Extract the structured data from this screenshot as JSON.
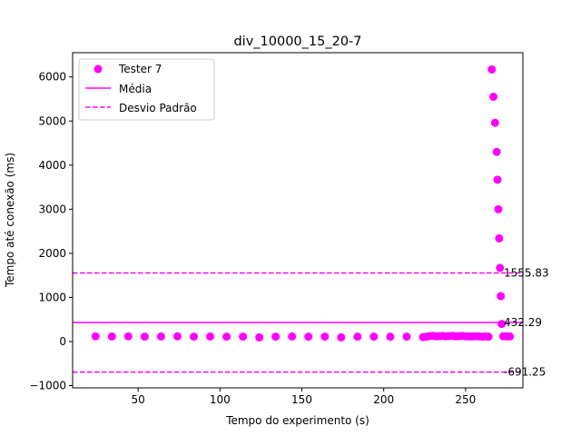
{
  "chart_data": {
    "type": "scatter",
    "title": "div_10000_15_20-7",
    "xlabel": "Tempo do experimento (s)",
    "ylabel": "Tempo até conexão (ms)",
    "xlim": [
      10,
      285
    ],
    "ylim": [
      -1050,
      6550
    ],
    "xticks": [
      50,
      100,
      150,
      200,
      250
    ],
    "yticks": [
      -1000,
      0,
      1000,
      2000,
      3000,
      4000,
      5000,
      6000
    ],
    "grid": false,
    "legend_position": "top-left",
    "color": "#ff00ff",
    "legend": [
      {
        "label": "Tester 7",
        "kind": "marker"
      },
      {
        "label": "Média",
        "kind": "solid-line"
      },
      {
        "label": "Desvio Padrão",
        "kind": "dashed-line"
      }
    ],
    "hlines": [
      {
        "y": 1555.83,
        "style": "dashed",
        "label": "1555.83"
      },
      {
        "y": 432.29,
        "style": "solid",
        "label": "432.29"
      },
      {
        "y": -691.25,
        "style": "dashed",
        "label": "-691.25"
      }
    ],
    "series": [
      {
        "name": "Tester 7",
        "points": [
          [
            24,
            120
          ],
          [
            34,
            115
          ],
          [
            44,
            118
          ],
          [
            54,
            112
          ],
          [
            64,
            115
          ],
          [
            74,
            118
          ],
          [
            84,
            112
          ],
          [
            94,
            115
          ],
          [
            104,
            110
          ],
          [
            114,
            112
          ],
          [
            124,
            95
          ],
          [
            134,
            112
          ],
          [
            144,
            115
          ],
          [
            154,
            110
          ],
          [
            164,
            112
          ],
          [
            174,
            95
          ],
          [
            184,
            110
          ],
          [
            194,
            112
          ],
          [
            204,
            110
          ],
          [
            214,
            112
          ],
          [
            224,
            100
          ],
          [
            226,
            110
          ],
          [
            228,
            125
          ],
          [
            230,
            130
          ],
          [
            232,
            118
          ],
          [
            234,
            122
          ],
          [
            236,
            128
          ],
          [
            238,
            120
          ],
          [
            240,
            125
          ],
          [
            242,
            130
          ],
          [
            244,
            118
          ],
          [
            246,
            122
          ],
          [
            248,
            128
          ],
          [
            250,
            120
          ],
          [
            252,
            118
          ],
          [
            254,
            115
          ],
          [
            256,
            120
          ],
          [
            258,
            118
          ],
          [
            260,
            112
          ],
          [
            262,
            115
          ],
          [
            264,
            110
          ],
          [
            266,
            6170
          ],
          [
            267,
            5550
          ],
          [
            268,
            4960
          ],
          [
            269,
            4300
          ],
          [
            269.5,
            3670
          ],
          [
            270,
            3000
          ],
          [
            270.5,
            2340
          ],
          [
            271,
            1670
          ],
          [
            271.5,
            1030
          ],
          [
            272,
            400
          ],
          [
            273,
            120
          ],
          [
            275,
            118
          ],
          [
            277,
            115
          ]
        ]
      }
    ]
  }
}
